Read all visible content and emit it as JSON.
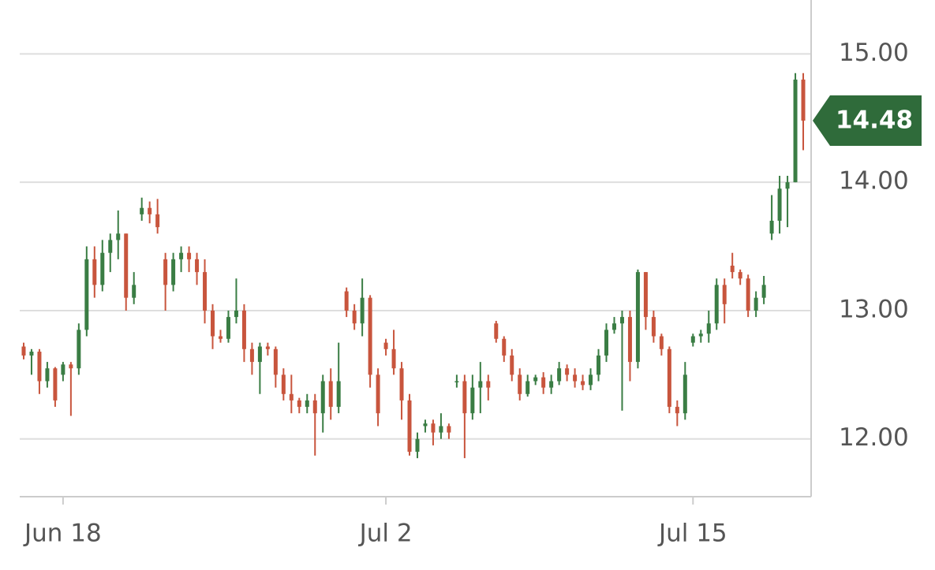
{
  "chart_data": {
    "type": "candlestick",
    "categories": [
      null,
      null,
      null,
      null,
      null,
      "Jun 18",
      null,
      null,
      null,
      null,
      null,
      null,
      null,
      null,
      null,
      null,
      null,
      null,
      null,
      null,
      null,
      null,
      null,
      null,
      null,
      null,
      null,
      null,
      null,
      null,
      null,
      null,
      null,
      null,
      null,
      null,
      null,
      null,
      null,
      null,
      null,
      null,
      null,
      null,
      null,
      null,
      "Jul 2",
      null,
      null,
      null,
      null,
      null,
      null,
      null,
      null,
      null,
      null,
      null,
      null,
      null,
      null,
      null,
      null,
      null,
      null,
      null,
      null,
      null,
      null,
      null,
      null,
      null,
      null,
      null,
      null,
      null,
      null,
      null,
      null,
      null,
      null,
      null,
      null,
      null,
      null,
      "Jul 15",
      null,
      null,
      null,
      null,
      null,
      null,
      null,
      null,
      null,
      null,
      null,
      null,
      null,
      null
    ],
    "open": [
      12.72,
      12.65,
      12.68,
      12.45,
      12.55,
      12.5,
      12.58,
      12.55,
      12.85,
      13.4,
      13.2,
      13.45,
      13.55,
      13.6,
      13.1,
      13.75,
      13.8,
      13.75,
      13.4,
      13.2,
      13.4,
      13.45,
      13.4,
      13.3,
      13.0,
      12.8,
      12.78,
      12.95,
      13.0,
      12.7,
      12.6,
      12.72,
      12.7,
      12.5,
      12.35,
      12.3,
      12.25,
      12.3,
      12.2,
      12.45,
      12.25,
      13.15,
      13.0,
      12.9,
      13.1,
      12.5,
      12.75,
      12.7,
      12.55,
      12.3,
      11.9,
      12.1,
      12.12,
      12.05,
      12.1,
      12.45,
      12.45,
      12.2,
      12.4,
      12.45,
      12.9,
      12.78,
      12.65,
      12.5,
      12.35,
      12.45,
      12.48,
      12.4,
      12.45,
      12.55,
      12.5,
      12.45,
      12.42,
      12.5,
      12.65,
      12.85,
      12.9,
      12.95,
      12.6,
      13.3,
      12.95,
      12.8,
      12.7,
      12.25,
      12.2,
      12.75,
      12.8,
      12.82,
      12.9,
      13.2,
      13.35,
      13.3,
      13.25,
      13.0,
      13.1,
      13.6,
      13.7,
      13.95,
      14.0,
      14.8
    ],
    "high": [
      12.75,
      12.7,
      12.7,
      12.6,
      12.56,
      12.6,
      12.6,
      12.9,
      13.5,
      13.5,
      13.55,
      13.6,
      13.78,
      13.6,
      13.3,
      13.88,
      13.85,
      13.87,
      13.45,
      13.45,
      13.5,
      13.5,
      13.45,
      13.4,
      13.05,
      12.85,
      13.0,
      13.25,
      13.05,
      12.75,
      12.75,
      12.75,
      12.72,
      12.55,
      12.5,
      12.32,
      12.35,
      12.35,
      12.5,
      12.55,
      12.75,
      13.18,
      13.05,
      13.25,
      13.12,
      12.55,
      12.78,
      12.85,
      12.6,
      12.35,
      12.05,
      12.15,
      12.15,
      12.2,
      12.12,
      12.5,
      12.5,
      12.5,
      12.6,
      12.5,
      12.92,
      12.8,
      12.7,
      12.55,
      12.5,
      12.5,
      12.52,
      12.5,
      12.6,
      12.58,
      12.55,
      12.5,
      12.55,
      12.7,
      12.9,
      12.95,
      13.0,
      13.0,
      13.32,
      13.3,
      13.0,
      12.82,
      12.72,
      12.3,
      12.6,
      12.82,
      12.85,
      13.0,
      13.25,
      13.25,
      13.45,
      13.32,
      13.28,
      13.15,
      13.27,
      13.9,
      14.05,
      14.05,
      14.85,
      14.85
    ],
    "low": [
      12.62,
      12.5,
      12.35,
      12.4,
      12.25,
      12.45,
      12.18,
      12.5,
      12.8,
      13.1,
      13.15,
      13.3,
      13.4,
      13.0,
      13.05,
      13.7,
      13.68,
      13.6,
      13.0,
      13.15,
      13.3,
      13.3,
      13.2,
      12.9,
      12.7,
      12.75,
      12.75,
      12.9,
      12.6,
      12.5,
      12.35,
      12.65,
      12.4,
      12.3,
      12.2,
      12.2,
      12.2,
      11.87,
      12.05,
      12.15,
      12.2,
      12.95,
      12.85,
      12.8,
      12.4,
      12.1,
      12.65,
      12.5,
      12.15,
      11.87,
      11.85,
      12.05,
      11.95,
      12.0,
      12.0,
      12.4,
      11.85,
      12.15,
      12.2,
      12.3,
      12.75,
      12.6,
      12.45,
      12.3,
      12.33,
      12.42,
      12.35,
      12.35,
      12.42,
      12.45,
      12.4,
      12.38,
      12.38,
      12.45,
      12.6,
      12.82,
      12.22,
      12.45,
      12.55,
      12.85,
      12.75,
      12.65,
      12.2,
      12.1,
      12.15,
      12.72,
      12.75,
      12.75,
      12.85,
      12.9,
      13.25,
      13.2,
      12.95,
      12.95,
      13.05,
      13.55,
      13.6,
      13.65,
      14.0,
      14.25
    ],
    "close": [
      12.65,
      12.68,
      12.45,
      12.55,
      12.3,
      12.58,
      12.55,
      12.85,
      13.4,
      13.2,
      13.45,
      13.55,
      13.6,
      13.1,
      13.2,
      13.8,
      13.75,
      13.65,
      13.2,
      13.4,
      13.45,
      13.4,
      13.3,
      13.0,
      12.8,
      12.78,
      12.95,
      13.0,
      12.7,
      12.6,
      12.72,
      12.7,
      12.5,
      12.35,
      12.3,
      12.25,
      12.3,
      12.2,
      12.45,
      12.25,
      12.45,
      13.0,
      12.9,
      13.1,
      12.5,
      12.2,
      12.7,
      12.55,
      12.3,
      11.9,
      12.0,
      12.12,
      12.05,
      12.1,
      12.05,
      12.45,
      12.2,
      12.4,
      12.45,
      12.4,
      12.78,
      12.65,
      12.5,
      12.35,
      12.45,
      12.48,
      12.4,
      12.45,
      12.55,
      12.5,
      12.45,
      12.42,
      12.5,
      12.65,
      12.85,
      12.9,
      12.95,
      12.6,
      13.3,
      12.95,
      12.8,
      12.7,
      12.25,
      12.2,
      12.5,
      12.8,
      12.82,
      12.9,
      13.2,
      13.05,
      13.3,
      13.25,
      13.0,
      13.1,
      13.2,
      13.7,
      13.95,
      14.0,
      14.8,
      14.48
    ],
    "up_color": "#3a7d44",
    "down_color": "#c8553d",
    "last_price_color": "#2f6b3a",
    "ylim": [
      11.55,
      15.42
    ],
    "yticks": [
      {
        "value": 12,
        "label": "12.00"
      },
      {
        "value": 13,
        "label": "13.00"
      },
      {
        "value": 14,
        "label": "14.00"
      },
      {
        "value": 15,
        "label": "15.00"
      }
    ],
    "grid": true
  }
}
